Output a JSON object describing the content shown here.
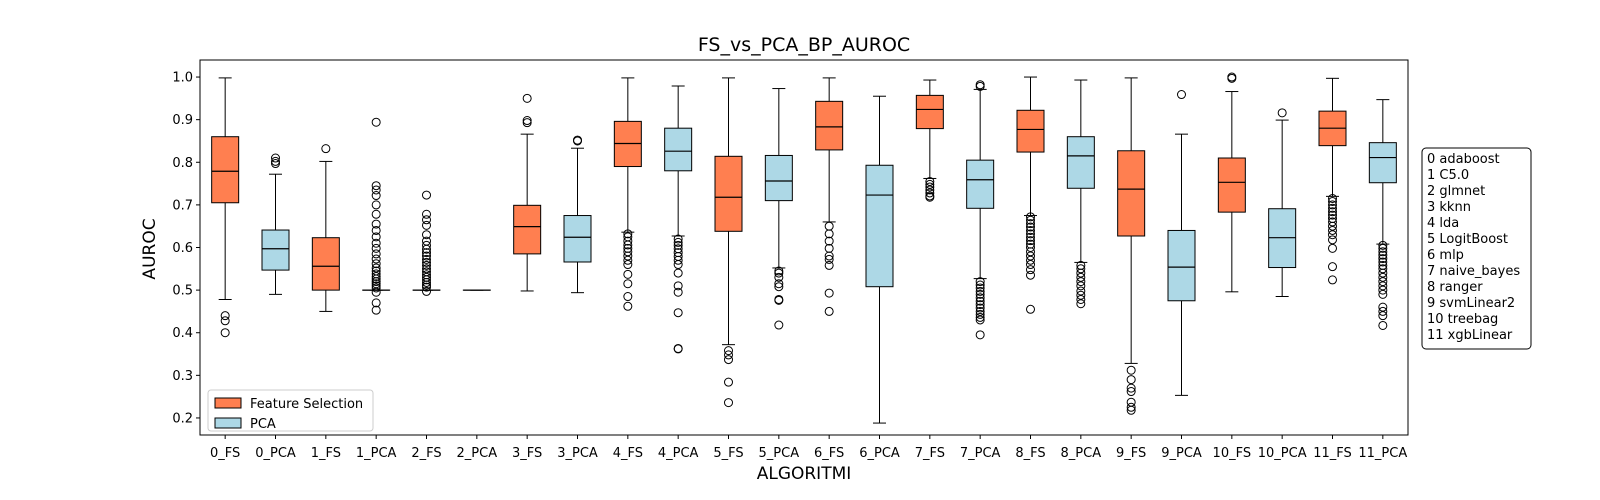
{
  "chart_data": {
    "type": "boxplot",
    "title": "FS_vs_PCA_BP_AUROC",
    "xlabel": "ALGORITMI",
    "ylabel": "AUROC",
    "ylim": [
      0.16,
      1.04
    ],
    "yticks": [
      0.2,
      0.3,
      0.4,
      0.5,
      0.6,
      0.7,
      0.8,
      0.9,
      1.0
    ],
    "grid": false,
    "colors": {
      "Feature Selection": "#FF7F50",
      "PCA": "#ADD8E6"
    },
    "legend": {
      "placement": "lower-left",
      "entries": [
        {
          "label": "Feature Selection",
          "color": "#FF7F50"
        },
        {
          "label": "PCA",
          "color": "#ADD8E6"
        }
      ]
    },
    "key_box": {
      "placement": "right",
      "lines": [
        "0 adaboost",
        "1 C5.0",
        "2 glmnet",
        "3 kknn",
        "4 lda",
        "5 LogitBoost",
        "6 mlp",
        "7 naive_bayes",
        "8 ranger",
        "9 svmLinear2",
        "10 treebag",
        "11 xgbLinear"
      ]
    },
    "boxes": [
      {
        "label": "0_FS",
        "group": "Feature Selection",
        "whislo": 0.478,
        "q1": 0.705,
        "median": 0.779,
        "q3": 0.86,
        "whishi": 0.998,
        "fliers": [
          0.44,
          0.428,
          0.4
        ]
      },
      {
        "label": "0_PCA",
        "group": "PCA",
        "whislo": 0.49,
        "q1": 0.547,
        "median": 0.597,
        "q3": 0.641,
        "whishi": 0.772,
        "fliers": [
          0.81,
          0.802,
          0.797
        ]
      },
      {
        "label": "1_FS",
        "group": "Feature Selection",
        "whislo": 0.45,
        "q1": 0.5,
        "median": 0.556,
        "q3": 0.623,
        "whishi": 0.802,
        "fliers": [
          0.832
        ]
      },
      {
        "label": "1_PCA",
        "group": "PCA",
        "whislo": 0.5,
        "q1": 0.5,
        "median": 0.5,
        "q3": 0.5,
        "whishi": 0.5,
        "fliers": [
          0.894,
          0.745,
          0.735,
          0.722,
          0.7,
          0.678,
          0.655,
          0.64,
          0.625,
          0.61,
          0.598,
          0.585,
          0.573,
          0.562,
          0.552,
          0.545,
          0.538,
          0.532,
          0.526,
          0.52,
          0.515,
          0.51,
          0.505,
          0.495,
          0.47,
          0.453
        ]
      },
      {
        "label": "2_FS",
        "group": "Feature Selection",
        "whislo": 0.5,
        "q1": 0.5,
        "median": 0.5,
        "q3": 0.5,
        "whishi": 0.5,
        "fliers": [
          0.723,
          0.678,
          0.665,
          0.652,
          0.63,
          0.615,
          0.605,
          0.596,
          0.588,
          0.58,
          0.572,
          0.565,
          0.558,
          0.55,
          0.543,
          0.536,
          0.53,
          0.524,
          0.518,
          0.512,
          0.507,
          0.497
        ]
      },
      {
        "label": "2_PCA",
        "group": "PCA",
        "whislo": 0.5,
        "q1": 0.5,
        "median": 0.5,
        "q3": 0.5,
        "whishi": 0.5,
        "fliers": []
      },
      {
        "label": "3_FS",
        "group": "Feature Selection",
        "whislo": 0.498,
        "q1": 0.585,
        "median": 0.649,
        "q3": 0.699,
        "whishi": 0.866,
        "fliers": [
          0.95,
          0.898,
          0.893
        ]
      },
      {
        "label": "3_PCA",
        "group": "PCA",
        "whislo": 0.494,
        "q1": 0.566,
        "median": 0.624,
        "q3": 0.675,
        "whishi": 0.833,
        "fliers": [
          0.852,
          0.85
        ]
      },
      {
        "label": "4_FS",
        "group": "Feature Selection",
        "whislo": 0.636,
        "q1": 0.79,
        "median": 0.844,
        "q3": 0.896,
        "whishi": 0.998,
        "fliers": [
          0.632,
          0.625,
          0.615,
          0.606,
          0.598,
          0.59,
          0.58,
          0.57,
          0.56,
          0.537,
          0.515,
          0.485,
          0.462
        ]
      },
      {
        "label": "4_PCA",
        "group": "PCA",
        "whislo": 0.627,
        "q1": 0.78,
        "median": 0.826,
        "q3": 0.88,
        "whishi": 0.979,
        "fliers": [
          0.62,
          0.612,
          0.605,
          0.597,
          0.588,
          0.579,
          0.57,
          0.56,
          0.54,
          0.51,
          0.495,
          0.447,
          0.363,
          0.362
        ]
      },
      {
        "label": "5_FS",
        "group": "Feature Selection",
        "whislo": 0.372,
        "q1": 0.638,
        "median": 0.718,
        "q3": 0.814,
        "whishi": 0.998,
        "fliers": [
          0.358,
          0.348,
          0.337,
          0.284,
          0.236
        ]
      },
      {
        "label": "5_PCA",
        "group": "PCA",
        "whislo": 0.552,
        "q1": 0.71,
        "median": 0.756,
        "q3": 0.816,
        "whishi": 0.973,
        "fliers": [
          0.545,
          0.54,
          0.53,
          0.515,
          0.508,
          0.478,
          0.476,
          0.418
        ]
      },
      {
        "label": "6_FS",
        "group": "Feature Selection",
        "whislo": 0.66,
        "q1": 0.829,
        "median": 0.883,
        "q3": 0.943,
        "whishi": 0.998,
        "fliers": [
          0.65,
          0.632,
          0.615,
          0.598,
          0.58,
          0.572,
          0.558,
          0.493,
          0.45
        ]
      },
      {
        "label": "6_PCA",
        "group": "PCA",
        "whislo": 0.188,
        "q1": 0.508,
        "median": 0.723,
        "q3": 0.793,
        "whishi": 0.955,
        "fliers": []
      },
      {
        "label": "7_FS",
        "group": "Feature Selection",
        "whislo": 0.762,
        "q1": 0.879,
        "median": 0.924,
        "q3": 0.957,
        "whishi": 0.993,
        "fliers": [
          0.755,
          0.748,
          0.742,
          0.735,
          0.728,
          0.721,
          0.718
        ]
      },
      {
        "label": "7_PCA",
        "group": "PCA",
        "whislo": 0.527,
        "q1": 0.692,
        "median": 0.759,
        "q3": 0.805,
        "whishi": 0.971,
        "fliers": [
          0.982,
          0.978,
          0.52,
          0.512,
          0.505,
          0.497,
          0.49,
          0.482,
          0.474,
          0.466,
          0.458,
          0.45,
          0.443,
          0.436,
          0.43,
          0.395
        ]
      },
      {
        "label": "8_FS",
        "group": "Feature Selection",
        "whislo": 0.675,
        "q1": 0.824,
        "median": 0.877,
        "q3": 0.922,
        "whishi": 1.0,
        "fliers": [
          0.672,
          0.664,
          0.656,
          0.648,
          0.64,
          0.632,
          0.624,
          0.616,
          0.608,
          0.6,
          0.59,
          0.58,
          0.57,
          0.56,
          0.548,
          0.535,
          0.455
        ]
      },
      {
        "label": "8_PCA",
        "group": "PCA",
        "whislo": 0.565,
        "q1": 0.739,
        "median": 0.815,
        "q3": 0.86,
        "whishi": 0.993,
        "fliers": [
          0.558,
          0.55,
          0.54,
          0.53,
          0.52,
          0.51,
          0.498,
          0.488,
          0.478,
          0.468
        ]
      },
      {
        "label": "9_FS",
        "group": "Feature Selection",
        "whislo": 0.328,
        "q1": 0.627,
        "median": 0.737,
        "q3": 0.827,
        "whishi": 0.998,
        "fliers": [
          0.312,
          0.29,
          0.27,
          0.262,
          0.237,
          0.225,
          0.218
        ]
      },
      {
        "label": "9_PCA",
        "group": "PCA",
        "whislo": 0.253,
        "q1": 0.475,
        "median": 0.554,
        "q3": 0.64,
        "whishi": 0.866,
        "fliers": [
          0.959
        ]
      },
      {
        "label": "10_FS",
        "group": "Feature Selection",
        "whislo": 0.496,
        "q1": 0.683,
        "median": 0.753,
        "q3": 0.81,
        "whishi": 0.966,
        "fliers": [
          1.0,
          0.997
        ]
      },
      {
        "label": "10_PCA",
        "group": "PCA",
        "whislo": 0.485,
        "q1": 0.553,
        "median": 0.623,
        "q3": 0.691,
        "whishi": 0.899,
        "fliers": [
          0.916
        ]
      },
      {
        "label": "11_FS",
        "group": "Feature Selection",
        "whislo": 0.72,
        "q1": 0.839,
        "median": 0.88,
        "q3": 0.92,
        "whishi": 0.997,
        "fliers": [
          0.715,
          0.708,
          0.7,
          0.692,
          0.684,
          0.676,
          0.668,
          0.66,
          0.65,
          0.64,
          0.63,
          0.618,
          0.598,
          0.555,
          0.524
        ]
      },
      {
        "label": "11_PCA",
        "group": "PCA",
        "whislo": 0.608,
        "q1": 0.752,
        "median": 0.811,
        "q3": 0.846,
        "whishi": 0.947,
        "fliers": [
          0.605,
          0.598,
          0.59,
          0.582,
          0.574,
          0.566,
          0.558,
          0.55,
          0.54,
          0.53,
          0.52,
          0.51,
          0.5,
          0.49,
          0.46,
          0.45,
          0.44,
          0.417
        ]
      }
    ]
  }
}
